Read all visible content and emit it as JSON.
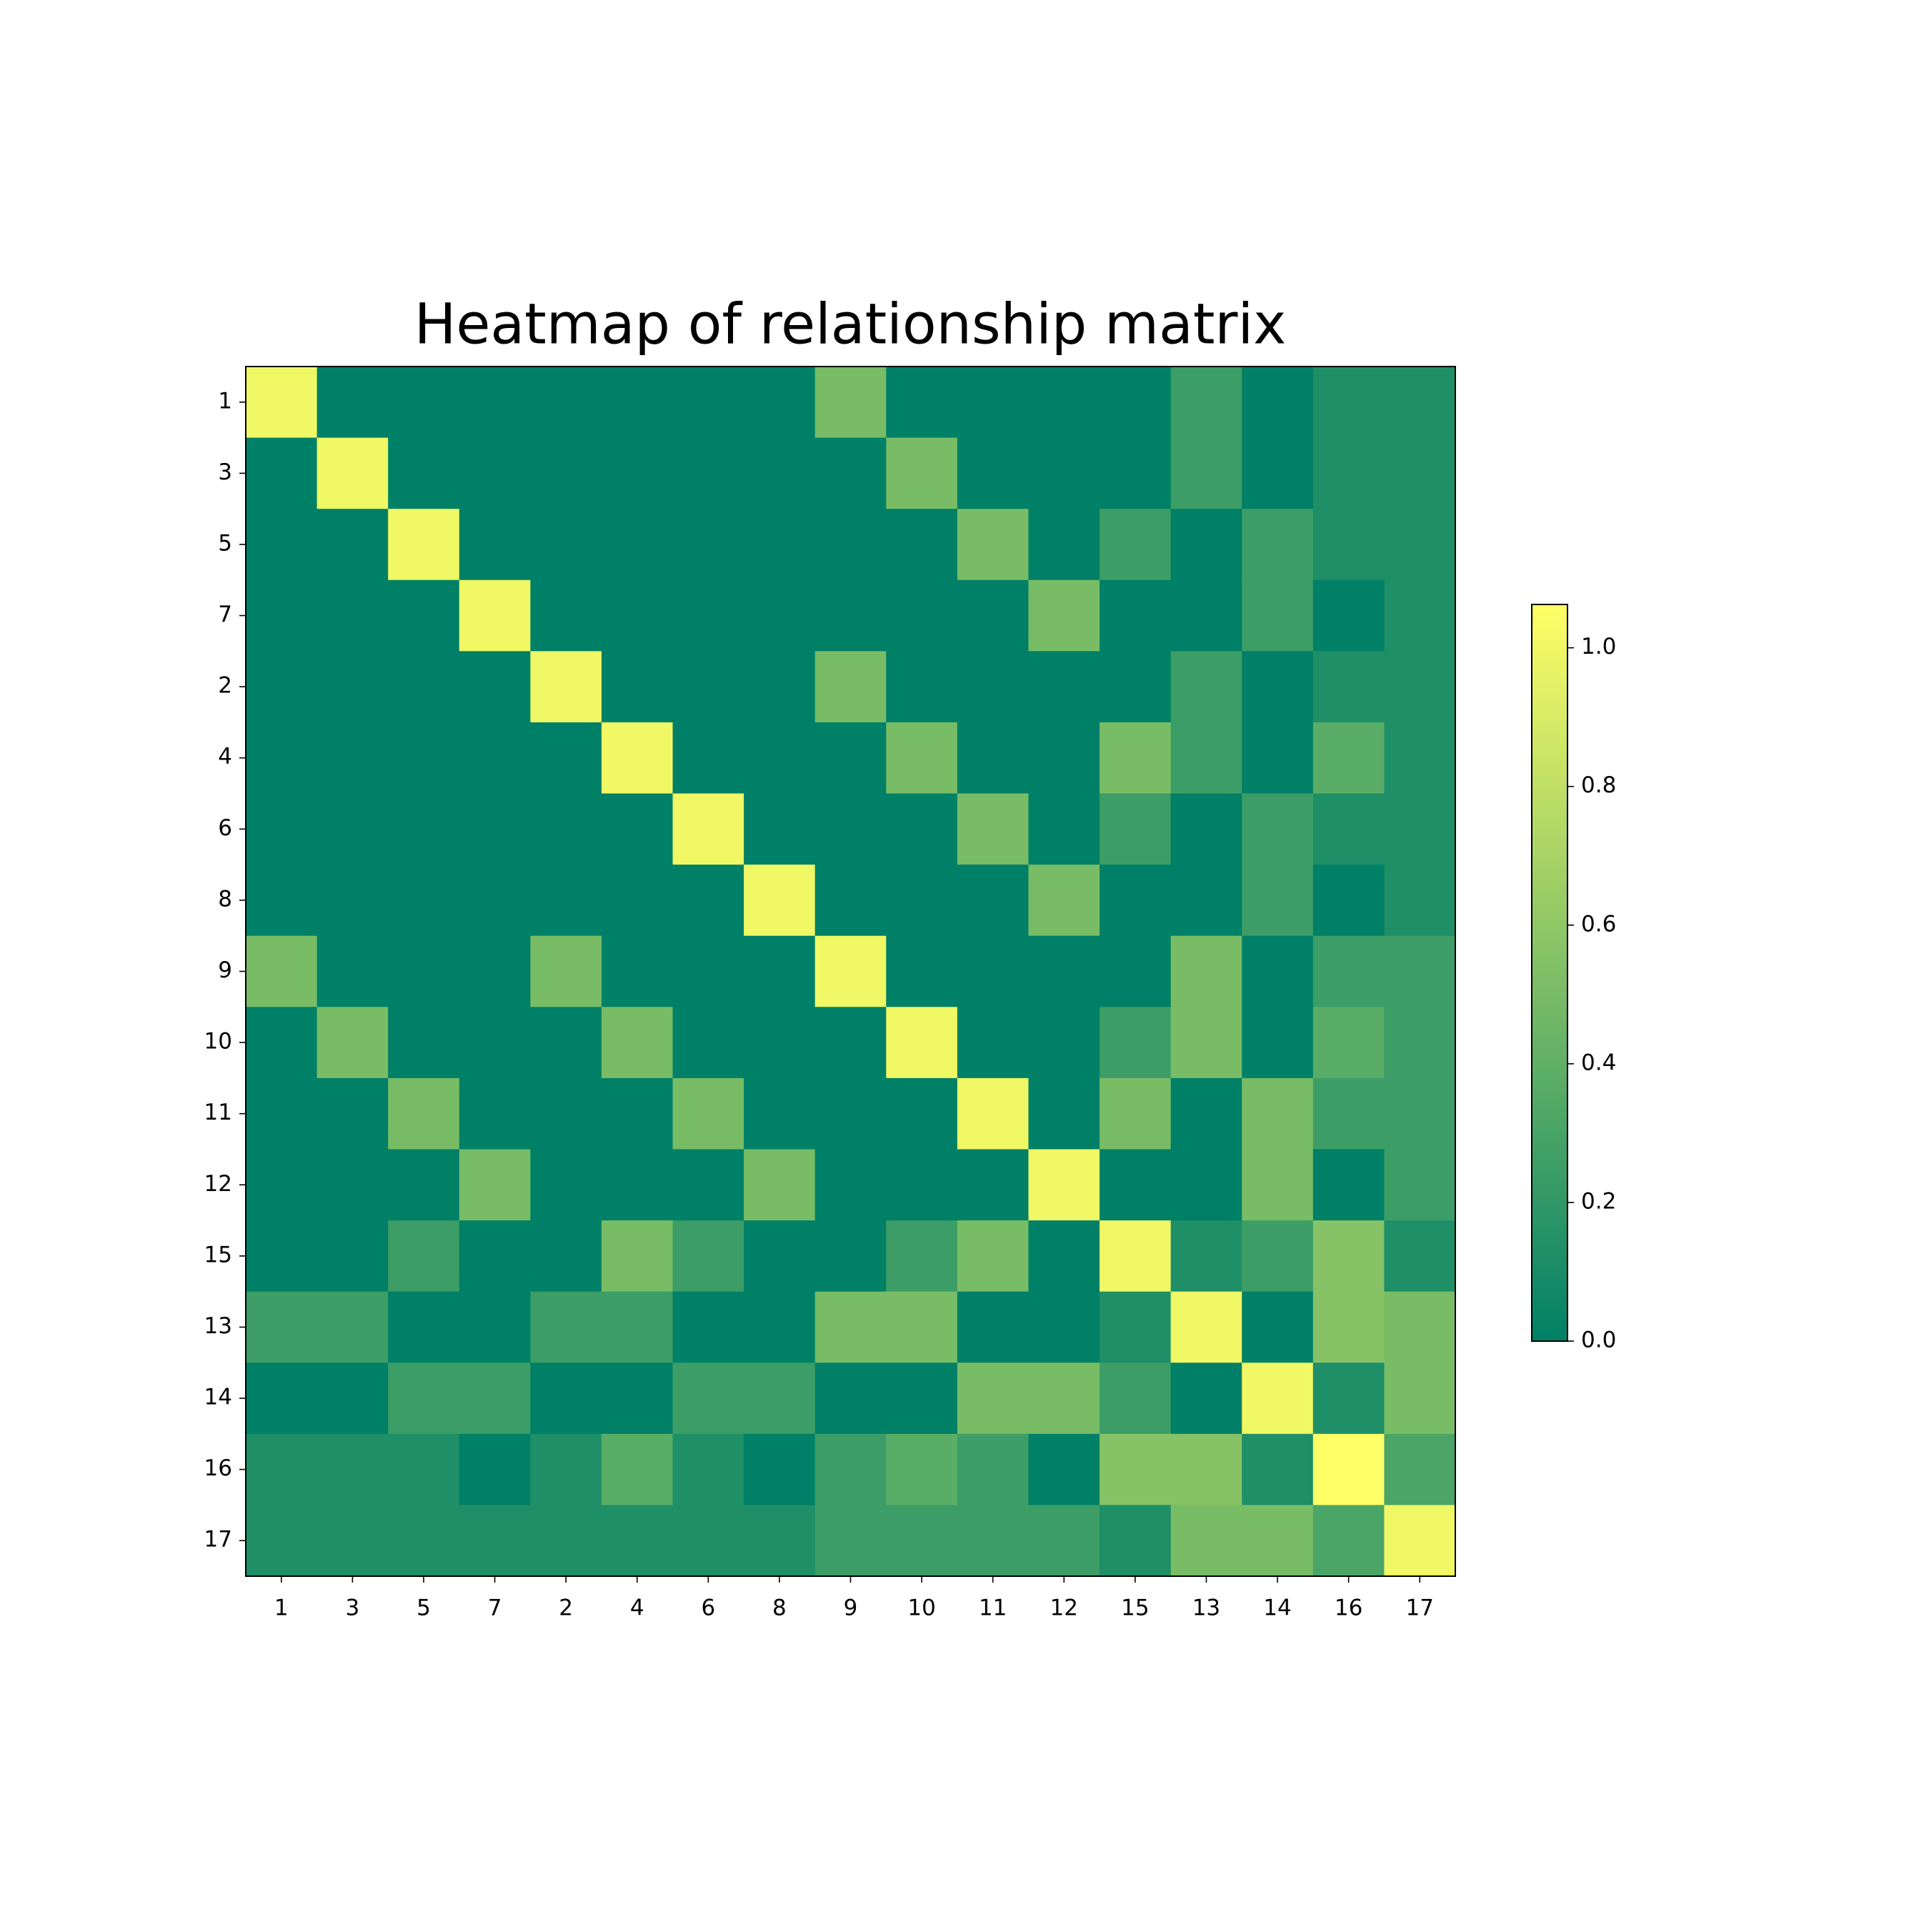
{
  "chart_data": {
    "type": "heatmap",
    "title": "Heatmap of relationship matrix",
    "colormap": "summer",
    "categories": [
      "1",
      "3",
      "5",
      "7",
      "2",
      "4",
      "6",
      "8",
      "9",
      "10",
      "11",
      "12",
      "15",
      "13",
      "14",
      "16",
      "17"
    ],
    "values": [
      [
        1,
        0,
        0,
        0,
        0,
        0,
        0,
        0,
        0.5,
        0,
        0,
        0,
        0,
        0.25,
        0,
        0.125,
        0.125
      ],
      [
        0,
        1,
        0,
        0,
        0,
        0,
        0,
        0,
        0,
        0.5,
        0,
        0,
        0,
        0.25,
        0,
        0.125,
        0.125
      ],
      [
        0,
        0,
        1,
        0,
        0,
        0,
        0,
        0,
        0,
        0,
        0.5,
        0,
        0.25,
        0,
        0.25,
        0.125,
        0.125
      ],
      [
        0,
        0,
        0,
        1,
        0,
        0,
        0,
        0,
        0,
        0,
        0,
        0.5,
        0,
        0,
        0.25,
        0,
        0.125
      ],
      [
        0,
        0,
        0,
        0,
        1,
        0,
        0,
        0,
        0.5,
        0,
        0,
        0,
        0,
        0.25,
        0,
        0.125,
        0.125
      ],
      [
        0,
        0,
        0,
        0,
        0,
        1,
        0,
        0,
        0,
        0.5,
        0,
        0,
        0.5,
        0.25,
        0,
        0.375,
        0.125
      ],
      [
        0,
        0,
        0,
        0,
        0,
        0,
        1,
        0,
        0,
        0,
        0.5,
        0,
        0.25,
        0,
        0.25,
        0.125,
        0.125
      ],
      [
        0,
        0,
        0,
        0,
        0,
        0,
        0,
        1,
        0,
        0,
        0,
        0.5,
        0,
        0,
        0.25,
        0,
        0.125
      ],
      [
        0.5,
        0,
        0,
        0,
        0.5,
        0,
        0,
        0,
        1,
        0,
        0,
        0,
        0,
        0.5,
        0,
        0.25,
        0.25
      ],
      [
        0,
        0.5,
        0,
        0,
        0,
        0.5,
        0,
        0,
        0,
        1,
        0,
        0,
        0.25,
        0.5,
        0,
        0.375,
        0.25
      ],
      [
        0,
        0,
        0.5,
        0,
        0,
        0,
        0.5,
        0,
        0,
        0,
        1,
        0,
        0.5,
        0,
        0.5,
        0.25,
        0.25
      ],
      [
        0,
        0,
        0,
        0.5,
        0,
        0,
        0,
        0.5,
        0,
        0,
        0,
        1,
        0,
        0,
        0.5,
        0,
        0.25
      ],
      [
        0,
        0,
        0.25,
        0,
        0,
        0.5,
        0.25,
        0,
        0,
        0.25,
        0.5,
        0,
        1,
        0.125,
        0.25,
        0.5625,
        0.125
      ],
      [
        0.25,
        0.25,
        0,
        0,
        0.25,
        0.25,
        0,
        0,
        0.5,
        0.5,
        0,
        0,
        0.125,
        1,
        0,
        0.5625,
        0.5
      ],
      [
        0,
        0,
        0.25,
        0.25,
        0,
        0,
        0.25,
        0.25,
        0,
        0,
        0.5,
        0.5,
        0.25,
        0,
        1,
        0.125,
        0.5
      ],
      [
        0.125,
        0.125,
        0.125,
        0,
        0.125,
        0.375,
        0.125,
        0,
        0.25,
        0.375,
        0.25,
        0,
        0.5625,
        0.5625,
        0.125,
        1.0625,
        0.3125
      ],
      [
        0.125,
        0.125,
        0.125,
        0.125,
        0.125,
        0.125,
        0.125,
        0.125,
        0.25,
        0.25,
        0.25,
        0.25,
        0.125,
        0.5,
        0.5,
        0.3125,
        1
      ]
    ],
    "clim": [
      0,
      1.0625
    ],
    "cticks": [
      {
        "value": 0,
        "label": "0.0"
      },
      0.2,
      0.4,
      0.6,
      0.8,
      {
        "value": 1,
        "label": "1.0"
      }
    ]
  }
}
